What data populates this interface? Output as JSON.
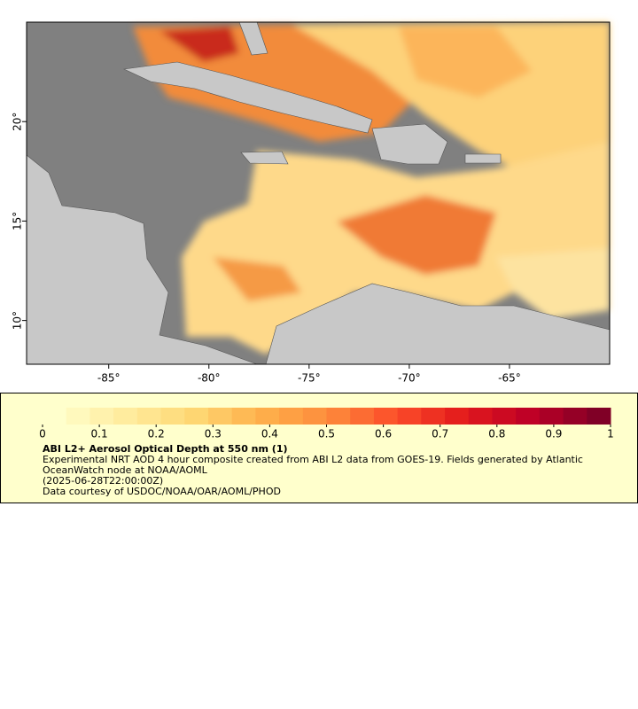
{
  "map": {
    "lonlim": [
      -89.1,
      -60
    ],
    "latlim": [
      7.8,
      25
    ],
    "lon_ticks": [
      {
        "value": -85,
        "label": "-85°"
      },
      {
        "value": -80,
        "label": "-80°"
      },
      {
        "value": -75,
        "label": "-75°"
      },
      {
        "value": -70,
        "label": "-70°"
      },
      {
        "value": -65,
        "label": "-65°"
      }
    ],
    "lat_ticks": [
      {
        "value": 20,
        "label": "20°"
      },
      {
        "value": 15,
        "label": "15°"
      },
      {
        "value": 10,
        "label": "10°"
      }
    ]
  },
  "colorbar": {
    "lim": [
      0,
      1
    ],
    "ticks": [
      0,
      0.1,
      0.2,
      0.3,
      0.4,
      0.5,
      0.6,
      0.7,
      0.8,
      0.9,
      1
    ]
  },
  "info": {
    "title": "ABI L2+ Aerosol Optical Depth at 550 nm (1)",
    "lines": [
      "Experimental NRT AOD 4 hour composite created from ABI L2 data from GOES-19. Fields generated by Atlantic",
      "OceanWatch node at NOAA/AOML",
      "(2025-06-28T22:00:00Z)",
      "Data courtesy of USDOC/NOAA/OAR/AOML/PHOD"
    ]
  }
}
